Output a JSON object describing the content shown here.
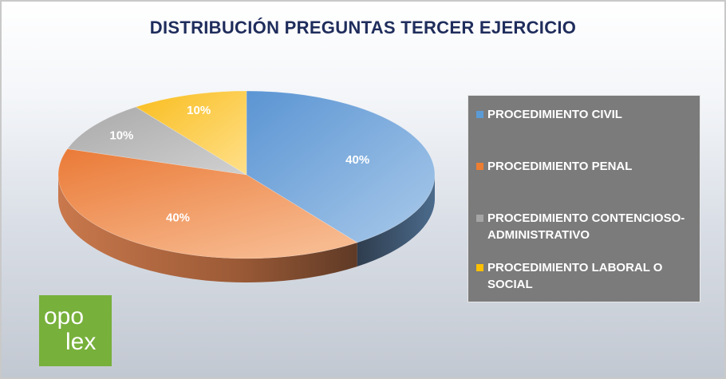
{
  "chart_data": {
    "type": "pie",
    "title": "DISTRIBUCIÓN PREGUNTAS TERCER EJERCICIO",
    "categories": [
      "PROCEDIMIENTO CIVIL",
      "PROCEDIMIENTO PENAL",
      "PROCEDIMIENTO CONTENCIOSO-ADMINISTRATIVO",
      "PROCEDIMIENTO LABORAL O SOCIAL"
    ],
    "values": [
      40,
      40,
      10,
      10
    ],
    "data_labels": [
      "40%",
      "40%",
      "10%",
      "10%"
    ],
    "colors": [
      "#5b9bd5",
      "#ed7d31",
      "#a5a5a5",
      "#ffc000"
    ],
    "legend_position": "right",
    "style": "3d"
  },
  "legend_lines": [
    [
      "PROCEDIMIENTO CIVIL"
    ],
    [
      "PROCEDIMIENTO PENAL"
    ],
    [
      "PROCEDIMIENTO CONTENCIOSO-",
      "ADMINISTRATIVO"
    ],
    [
      "PROCEDIMIENTO LABORAL O",
      "SOCIAL"
    ]
  ],
  "logo": {
    "line1": "opo",
    "line2": "lex"
  }
}
